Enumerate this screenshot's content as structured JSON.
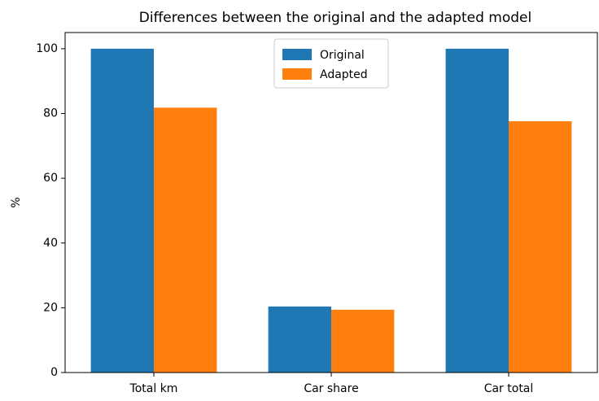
{
  "chart_data": {
    "type": "bar",
    "title": "Differences between the original and the adapted model",
    "ylabel": "%",
    "categories": [
      "Total km",
      "Car share",
      "Car total"
    ],
    "series": [
      {
        "name": "Original",
        "color": "#1f77b4",
        "values": [
          100,
          20.4,
          100
        ]
      },
      {
        "name": "Adapted",
        "color": "#ff7f0e",
        "values": [
          81.8,
          19.4,
          77.6
        ]
      }
    ],
    "ylim": [
      0,
      105
    ],
    "yticks": [
      0,
      20,
      40,
      60,
      80,
      100
    ],
    "legend": "upper center"
  }
}
